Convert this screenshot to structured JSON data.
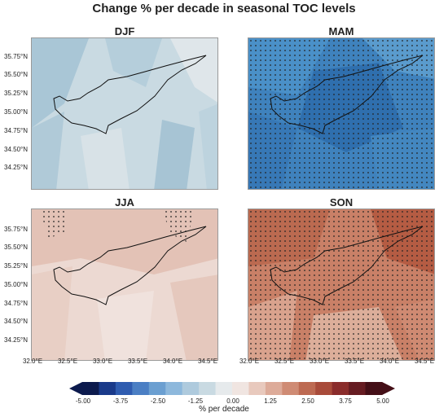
{
  "title": "Change % per decade in seasonal TOC levels",
  "panels": [
    {
      "name": "DJF",
      "base": "#c7d9e3",
      "dots": false
    },
    {
      "name": "MAM",
      "base": "#3f82bd",
      "dots": true
    },
    {
      "name": "JJA",
      "base": "#ead2cb",
      "dots": false
    },
    {
      "name": "SON",
      "base": "#c47a63",
      "dots": true
    }
  ],
  "lat_labels": [
    "35.75°N",
    "35.50°N",
    "35.25°N",
    "35.00°N",
    "34.75°N",
    "34.50°N",
    "34.25°N"
  ],
  "lon_labels": [
    "32.0°E",
    "32.5°E",
    "33.0°E",
    "33.5°E",
    "34.0°E",
    "34.5°E"
  ],
  "colorbar": {
    "ticks": [
      "-5.00",
      "-3.75",
      "-2.50",
      "-1.25",
      "0.00",
      "1.25",
      "2.50",
      "3.75",
      "5.00"
    ],
    "title": "% per decade",
    "colors": [
      "#0c1a4d",
      "#1a3a8a",
      "#2f5cb0",
      "#4b7fc4",
      "#6b9fd1",
      "#8db8dc",
      "#aecadd",
      "#c9dae2",
      "#e6eaec",
      "#f0e5e1",
      "#e8c9bd",
      "#ddab99",
      "#cf8b74",
      "#bd6a52",
      "#a84b3a",
      "#8a2c2b",
      "#661c22",
      "#440f17"
    ]
  }
}
